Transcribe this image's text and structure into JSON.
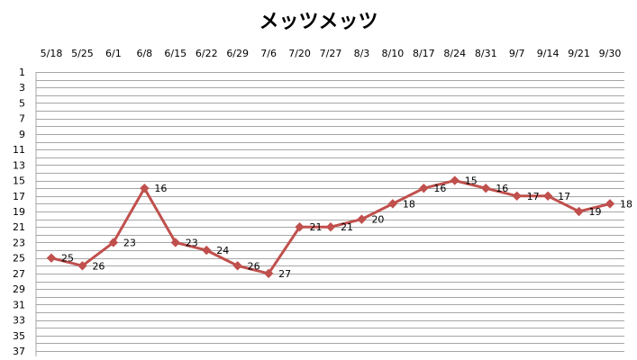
{
  "chart_data": {
    "type": "line",
    "title": "メッツメッツ",
    "xlabel": "",
    "ylabel": "",
    "categories": [
      "5/18",
      "5/25",
      "6/1",
      "6/8",
      "6/15",
      "6/22",
      "6/29",
      "7/6",
      "7/20",
      "7/27",
      "8/3",
      "8/10",
      "8/17",
      "8/24",
      "8/31",
      "9/7",
      "9/14",
      "9/21",
      "9/30"
    ],
    "series": [
      {
        "values": [
          25,
          26,
          23,
          16,
          23,
          24,
          26,
          27,
          21,
          21,
          20,
          18,
          16,
          15,
          16,
          17,
          17,
          19,
          18
        ]
      }
    ],
    "ylim": [
      1,
      37
    ],
    "y_reversed": true,
    "x_axis_position": "top",
    "yticks": [
      1,
      3,
      5,
      7,
      9,
      11,
      13,
      15,
      17,
      19,
      21,
      23,
      25,
      27,
      29,
      31,
      33,
      35,
      37
    ],
    "grid": true,
    "legend": "none",
    "data_labels": true,
    "colors": {
      "series": "#c0504d",
      "grid": "#a6a6a6",
      "text": "#000000"
    }
  }
}
